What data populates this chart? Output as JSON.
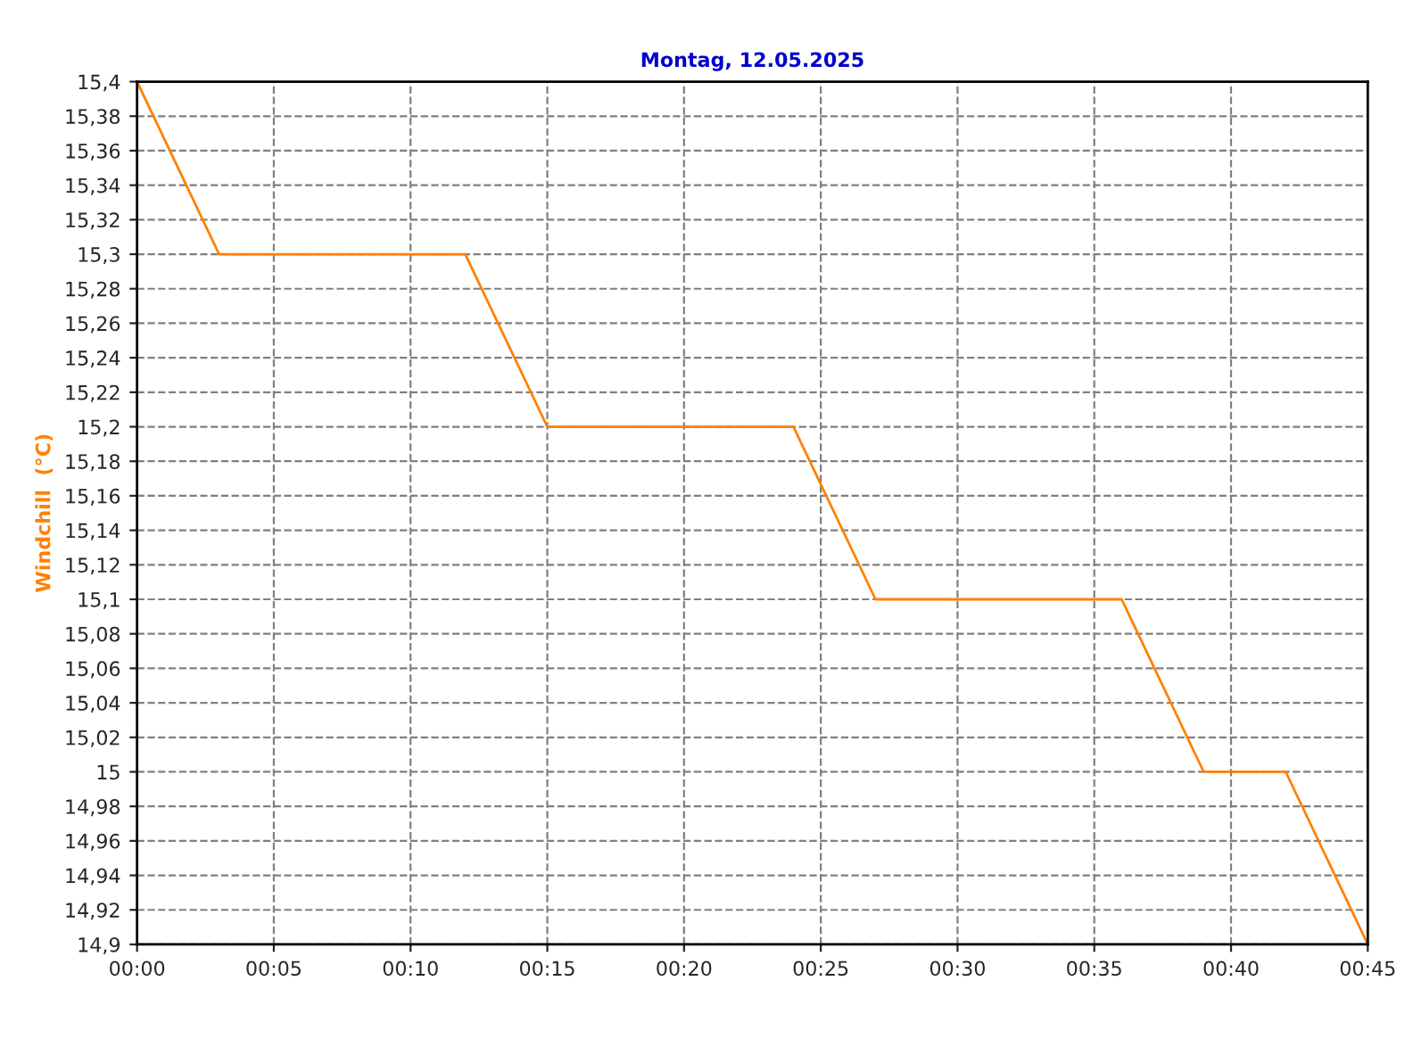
{
  "chart_data": {
    "type": "line",
    "title": "Montag, 12.05.2025",
    "ylabel": "Windchill  (°C)",
    "x": [
      0,
      0.05,
      0.2,
      0.25,
      0.4,
      0.45,
      0.6,
      0.65,
      0.7,
      0.75
    ],
    "series": [
      {
        "color": "#ff8000",
        "values": [
          15.4,
          15.3,
          15.3,
          15.2,
          15.2,
          15.1,
          15.1,
          15.0,
          15.0,
          14.9
        ]
      }
    ],
    "xlim": [
      0,
      0.75
    ],
    "xticks": [
      {
        "value": 0,
        "label": "00:00"
      },
      {
        "value": 0.083333,
        "label": "00:05"
      },
      {
        "value": 0.166667,
        "label": "00:10"
      },
      {
        "value": 0.25,
        "label": "00:15"
      },
      {
        "value": 0.333333,
        "label": "00:20"
      },
      {
        "value": 0.416667,
        "label": "00:25"
      },
      {
        "value": 0.5,
        "label": "00:30"
      },
      {
        "value": 0.583333,
        "label": "00:35"
      },
      {
        "value": 0.666667,
        "label": "00:40"
      },
      {
        "value": 0.75,
        "label": "00:45"
      }
    ],
    "ylim": [
      14.9,
      15.4
    ],
    "yticks": [
      {
        "value": 14.9,
        "label": "14,9"
      },
      {
        "value": 14.92,
        "label": "14,92"
      },
      {
        "value": 14.94,
        "label": "14,94"
      },
      {
        "value": 14.96,
        "label": "14,96"
      },
      {
        "value": 14.98,
        "label": "14,98"
      },
      {
        "value": 15,
        "label": "15"
      },
      {
        "value": 15.02,
        "label": "15,02"
      },
      {
        "value": 15.04,
        "label": "15,04"
      },
      {
        "value": 15.06,
        "label": "15,06"
      },
      {
        "value": 15.08,
        "label": "15,08"
      },
      {
        "value": 15.1,
        "label": "15,1"
      },
      {
        "value": 15.12,
        "label": "15,12"
      },
      {
        "value": 15.14,
        "label": "15,14"
      },
      {
        "value": 15.16,
        "label": "15,16"
      },
      {
        "value": 15.18,
        "label": "15,18"
      },
      {
        "value": 15.2,
        "label": "15,2"
      },
      {
        "value": 15.22,
        "label": "15,22"
      },
      {
        "value": 15.24,
        "label": "15,24"
      },
      {
        "value": 15.26,
        "label": "15,26"
      },
      {
        "value": 15.28,
        "label": "15,28"
      },
      {
        "value": 15.3,
        "label": "15,3"
      },
      {
        "value": 15.32,
        "label": "15,32"
      },
      {
        "value": 15.34,
        "label": "15,34"
      },
      {
        "value": 15.36,
        "label": "15,36"
      },
      {
        "value": 15.38,
        "label": "15,38"
      },
      {
        "value": 15.4,
        "label": "15,4"
      }
    ],
    "grid": true,
    "marker": "none",
    "line_style": "solid",
    "legend": false
  }
}
